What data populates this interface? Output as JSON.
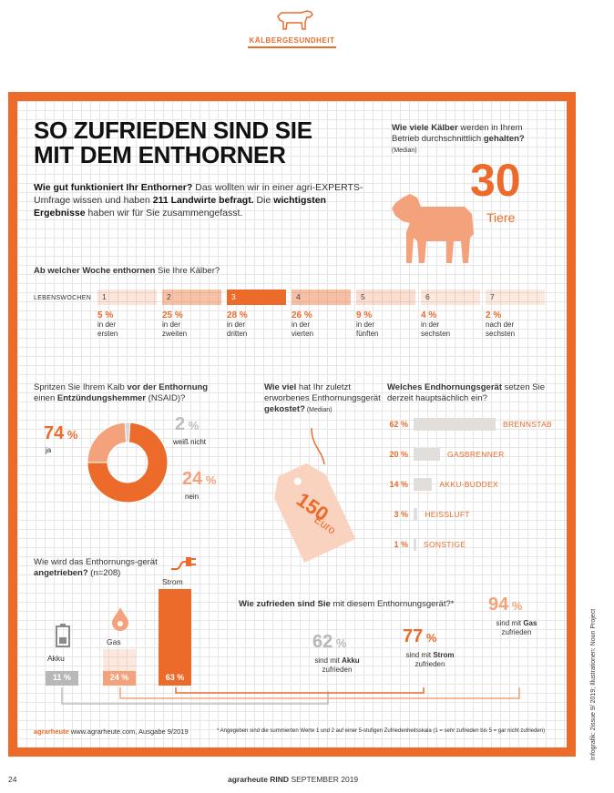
{
  "header": {
    "section": "KÄLBERGESUNDHEIT"
  },
  "title": {
    "line1": "SO ZUFRIEDEN SIND SIE",
    "line2": "MIT DEM ENTHORNER"
  },
  "intro": {
    "q": "Wie gut funktioniert Ihr Enthorner?",
    "t1": " Das wollten wir in einer agri-EXPERTS-Umfrage wissen und haben ",
    "b1": "211 Landwirte befragt.",
    "t2": " Die ",
    "b2": "wichtigsten Ergebnisse",
    "t3": " haben wir für Sie zusammengefasst."
  },
  "calves": {
    "q1": "Wie viele Kälber",
    "q2": " werden in Ihrem Betrieb durchschnittlich ",
    "q3": "gehalten?",
    "median": "(Median)",
    "value": "30",
    "unit": "Tiere"
  },
  "weeks": {
    "q_b": "Ab welcher Woche enthornen",
    "q_t": " Sie Ihre Kälber?",
    "label": "LEBENSWOCHEN",
    "items": [
      {
        "n": "1",
        "p": "5 %",
        "l1": "in der",
        "l2": "ersten",
        "fill": 0.05
      },
      {
        "n": "2",
        "p": "25 %",
        "l1": "in der",
        "l2": "zweiten",
        "fill": 0.25
      },
      {
        "n": "3",
        "p": "28 %",
        "l1": "in der",
        "l2": "dritten",
        "fill": 0.28
      },
      {
        "n": "4",
        "p": "26 %",
        "l1": "in der",
        "l2": "vierten",
        "fill": 0.26
      },
      {
        "n": "5",
        "p": "9 %",
        "l1": "in der",
        "l2": "fünften",
        "fill": 0.09
      },
      {
        "n": "6",
        "p": "4 %",
        "l1": "in der",
        "l2": "sechsten",
        "fill": 0.04
      },
      {
        "n": "7",
        "p": "2 %",
        "l1": "nach der",
        "l2": "sechsten",
        "fill": 0.02
      }
    ]
  },
  "nsaid": {
    "t1": "Spritzen Sie Ihrem Kalb ",
    "b1": "vor der Enthornung",
    "t2": " einen ",
    "b2": "Entzündungshemmer",
    "t3": " (NSAID)?",
    "ja": {
      "v": "74",
      "u": " %",
      "l": "ja"
    },
    "weiss": {
      "v": "2",
      "u": " %",
      "l": "weiß nicht"
    },
    "nein": {
      "v": "24",
      "u": " %",
      "l": "nein"
    },
    "colors": {
      "ja": "#ed6b2a",
      "nein": "#f4a27b",
      "weiss": "#d4d4d4"
    }
  },
  "cost": {
    "b1": "Wie viel",
    "t1": " hat Ihr zuletzt erworbenes Enthornungsgerät ",
    "b2": "gekostet?",
    "median": " (Median)",
    "value": "150",
    "unit": "Euro"
  },
  "device": {
    "t1": "Welches Endhornungsgerät",
    "t2": " setzen Sie derzeit hauptsächlich ein?",
    "items": [
      {
        "p": "62 %",
        "n": "BRENNSTAB",
        "v": 62
      },
      {
        "p": "20 %",
        "n": "GASBRENNER",
        "v": 20
      },
      {
        "p": "14 %",
        "n": "AKKU-BUDDEX",
        "v": 14
      },
      {
        "p": "3 %",
        "n": "HEISSLUFT",
        "v": 3
      },
      {
        "p": "1 %",
        "n": "SONSTIGE",
        "v": 1
      }
    ]
  },
  "drive": {
    "t1": "Wie wird das Enthornungs-gerät ",
    "b1": "angetrieben?",
    "t2": " (n=208)",
    "items": [
      {
        "name": "Akku",
        "p": "11 %",
        "v": 11,
        "color": "#b8b8b8"
      },
      {
        "name": "Gas",
        "p": "24 %",
        "v": 24,
        "color": "#f4a27b"
      },
      {
        "name": "Strom",
        "p": "63 %",
        "v": 63,
        "color": "#ed6b2a"
      }
    ]
  },
  "satisfaction": {
    "b1": "Wie zufrieden sind Sie",
    "t1": " mit diesem Enthornungsgerät?*",
    "akku": {
      "v": "62",
      "u": " %",
      "l1": "sind mit ",
      "b": "Akku",
      "l2": "zufrieden"
    },
    "strom": {
      "v": "77",
      "u": " %",
      "l1": "sind mit ",
      "b": "Strom",
      "l2": "zufrieden"
    },
    "gas": {
      "v": "94",
      "u": " %",
      "l1": "sind mit ",
      "b": "Gas",
      "l2": "zufrieden"
    }
  },
  "source": {
    "brand": "agrarheute",
    "text": "  www.agrarheute.com, Ausgabe 9/2019"
  },
  "note": "*  Angegeben sind die summierten Werte 1 und 2 auf einer 5-stufigen Zufriedenheitsskala (1 = sehr zufrieden bis 5 = gar nicht zufrieden)",
  "side": "Infografik: 2issue 9/ 2019; Illustrationen: Noun Project",
  "footer": {
    "page": "24",
    "brand": "agrarheute RIND",
    "issue": "SEPTEMBER 2019"
  }
}
